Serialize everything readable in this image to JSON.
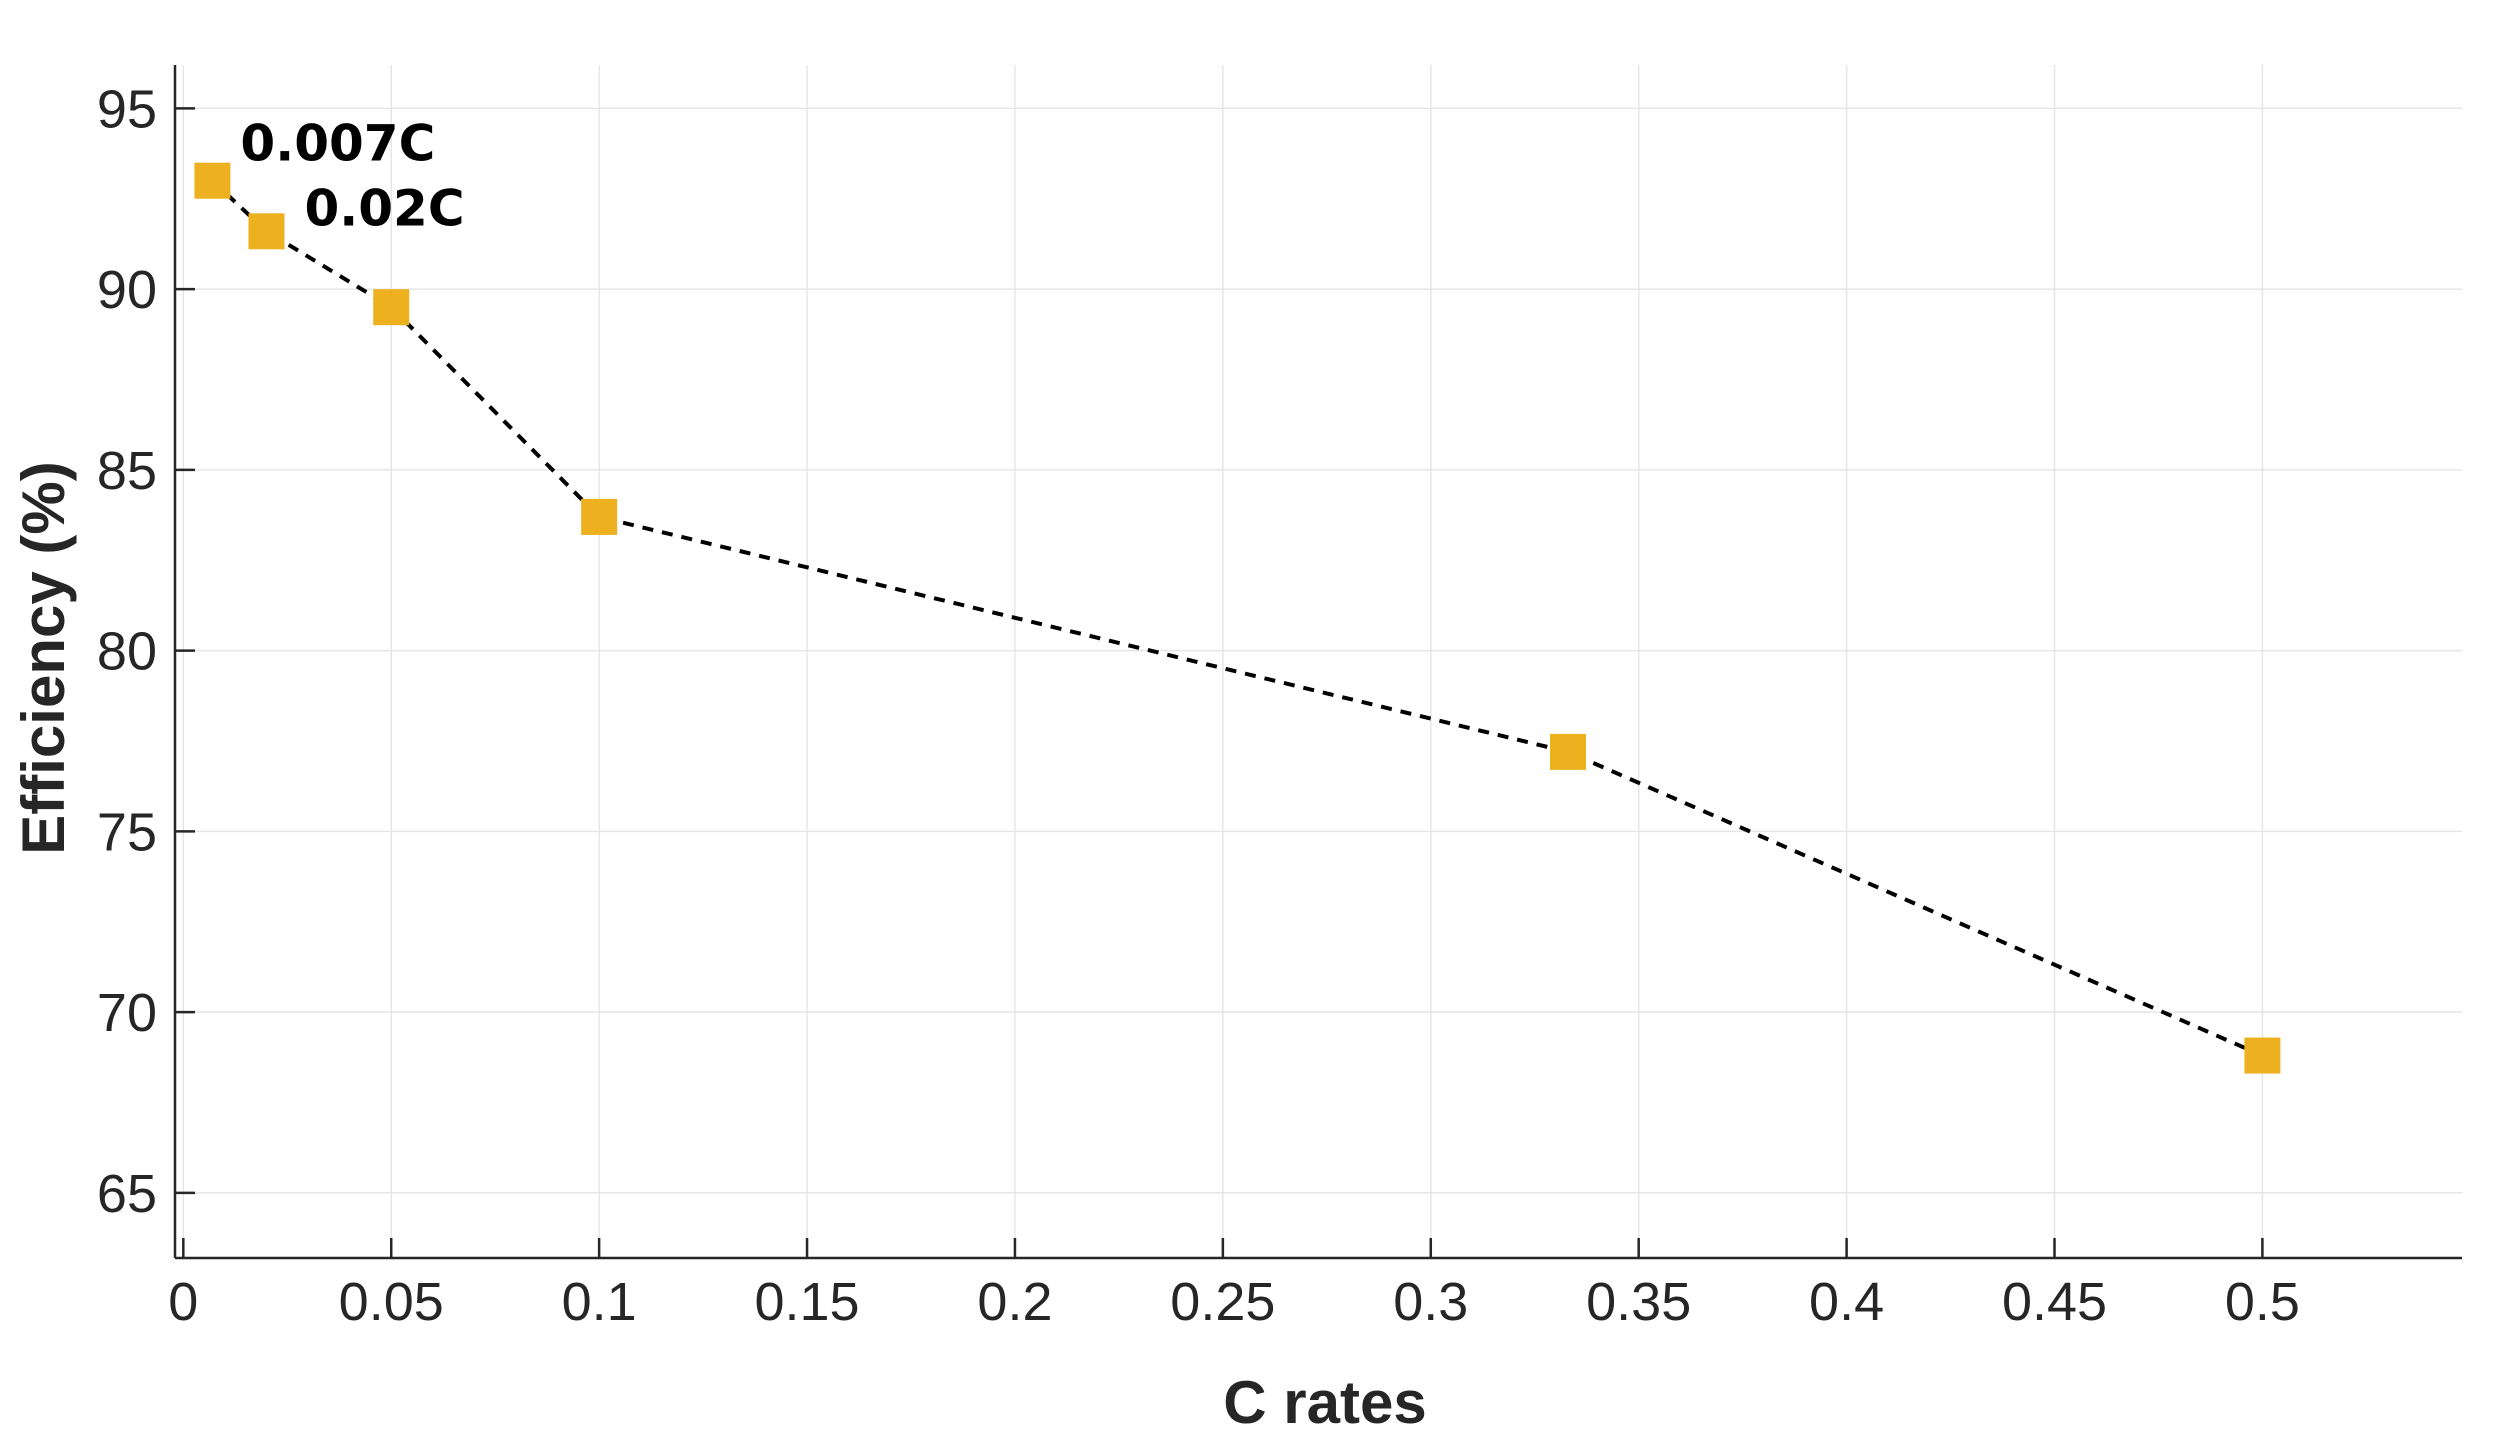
{
  "chart_data": {
    "type": "line",
    "title": "",
    "xlabel": "C rates",
    "ylabel": "Efficiency (%)",
    "xlim": [
      -0.002,
      0.548
    ],
    "ylim": [
      63.2,
      96.2
    ],
    "xticks": [
      0,
      0.05,
      0.1,
      0.15,
      0.2,
      0.25,
      0.3,
      0.35,
      0.4,
      0.45,
      0.5
    ],
    "xtick_labels": [
      "0",
      "0.05",
      "0.1",
      "0.15",
      "0.2",
      "0.25",
      "0.3",
      "0.35",
      "0.4",
      "0.45",
      "0.5"
    ],
    "yticks": [
      65,
      70,
      75,
      80,
      85,
      90,
      95
    ],
    "ytick_labels": [
      "65",
      "70",
      "75",
      "80",
      "85",
      "90",
      "95"
    ],
    "grid": true,
    "series": [
      {
        "x": [
          0.007,
          0.02,
          0.05,
          0.1,
          0.333,
          0.5
        ],
        "y": [
          93.0,
          91.6,
          89.5,
          83.7,
          77.2,
          68.8
        ],
        "line_style": "dashed",
        "line_color": "#000000",
        "marker": "square",
        "marker_color": "#EDB120"
      }
    ],
    "annotations": [
      {
        "text": "0.007C",
        "x": 0.007,
        "y": 93.0
      },
      {
        "text": "0.02C",
        "x": 0.02,
        "y": 91.6
      }
    ]
  }
}
